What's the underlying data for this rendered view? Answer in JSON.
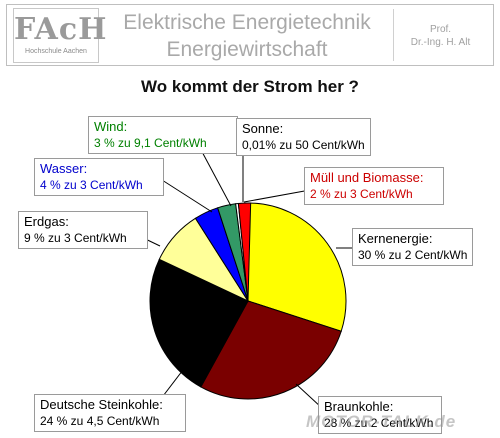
{
  "header": {
    "logo_mark": "FAcH",
    "logo_sub": "Hochschule Aachen",
    "title_line1": "Elektrische Energietechnik",
    "title_line2": "Energiewirtschaft",
    "author_line1": "Prof.",
    "author_line2": "Dr.-Ing. H. Alt"
  },
  "chart_data": {
    "type": "pie",
    "title": "Wo kommt der Strom her ?",
    "slices": [
      {
        "name": "Kernenergie:",
        "detail": "30 % zu 2 Cent/kWh",
        "value": 30,
        "color": "#ffff00"
      },
      {
        "name": "Braunkohle:",
        "detail": "28 % zu 2 Cent/kWh",
        "value": 28,
        "color": "#7a0000"
      },
      {
        "name": "Deutsche Steinkohle:",
        "detail": "24 % zu 4,5 Cent/kWh",
        "value": 24,
        "color": "#000000"
      },
      {
        "name": "Erdgas:",
        "detail": "9 % zu 3 Cent/kWh",
        "value": 9,
        "color": "#ffff99"
      },
      {
        "name": "Wasser:",
        "detail": "4 % zu 3 Cent/kWh",
        "value": 4,
        "color": "#0000ff"
      },
      {
        "name": "Wind:",
        "detail": "3 % zu 9,1 Cent/kWh",
        "value": 3,
        "color": "#339966"
      },
      {
        "name": "Sonne:",
        "detail": "0,01% zu 50 Cent/kWh",
        "value": 0.01,
        "color": "#ffffff"
      },
      {
        "name": "Müll und Biomasse:",
        "detail": "2 % zu 3 Cent/kWh",
        "value": 2,
        "color": "#ff0000"
      }
    ],
    "label_colors": [
      "#000000",
      "#000000",
      "#000000",
      "#000000",
      "#0000cc",
      "#008000",
      "#000000",
      "#cc0000"
    ]
  },
  "watermark": "MOTOR-TALK.de"
}
